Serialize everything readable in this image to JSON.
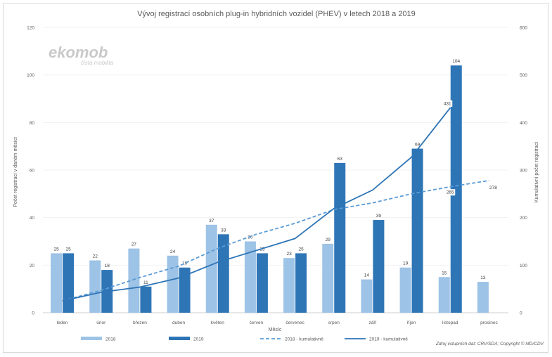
{
  "chart_data": {
    "type": "bar",
    "title": "Vývoj registrací osobních plug-in hybridních vozidel (PHEV) v letech 2018 a 2019",
    "xlabel": "Měsíc",
    "ylabel": "Počet registrací v daném měsíci",
    "y2label": "Kumulativní počet registrací",
    "ylim": [
      0,
      120
    ],
    "y2lim": [
      0,
      600
    ],
    "yticks": [
      "0",
      "20",
      "40",
      "60",
      "80",
      "100",
      "120"
    ],
    "y2ticks": [
      "0",
      "100",
      "200",
      "300",
      "400",
      "500",
      "600"
    ],
    "categories": [
      "leden",
      "únor",
      "březen",
      "duben",
      "květen",
      "červen",
      "červenec",
      "srpen",
      "září",
      "říjen",
      "listopad",
      "prosinec"
    ],
    "series": [
      {
        "name": "2018",
        "type": "bar",
        "axis": "left",
        "color": "#9dc3e6",
        "values": [
          25,
          22,
          27,
          24,
          37,
          30,
          23,
          29,
          14,
          19,
          15,
          13
        ]
      },
      {
        "name": "2019",
        "type": "bar",
        "axis": "left",
        "color": "#2e75b6",
        "values": [
          25,
          18,
          11,
          19,
          33,
          25,
          25,
          63,
          39,
          69,
          104,
          null
        ]
      },
      {
        "name": "2018 - kumulativně",
        "type": "line",
        "axis": "right",
        "dashed": true,
        "color": "#5b9bd5",
        "values": [
          25,
          47,
          74,
          98,
          135,
          165,
          188,
          217,
          231,
          250,
          265,
          278
        ]
      },
      {
        "name": "2019 - kumulativně",
        "type": "line",
        "axis": "right",
        "dashed": false,
        "color": "#2e75b6",
        "values": [
          25,
          43,
          54,
          73,
          106,
          131,
          156,
          219,
          258,
          327,
          431,
          null
        ]
      }
    ],
    "line_labels": [
      {
        "series": "2018 - kumulativně",
        "index": 10,
        "text": "265"
      },
      {
        "series": "2018 - kumulativně",
        "index": 11,
        "text": "278"
      },
      {
        "series": "2019 - kumulativně",
        "index": 10,
        "text": "431"
      }
    ],
    "legend_position": "bottom"
  },
  "logo": {
    "main": "ekomob",
    "sub": "čistá mobilita"
  },
  "source": "Zdroj vstupních dat: CRV/SDA; Copyright © MD/CDV"
}
